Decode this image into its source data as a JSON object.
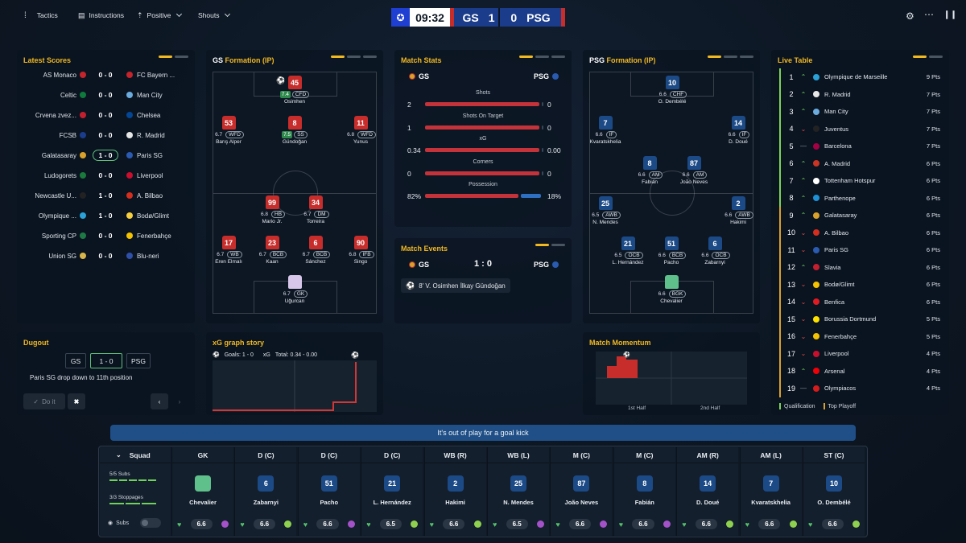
{
  "topbar": {
    "tactics": "Tactics",
    "instructions": "Instructions",
    "mentality": "Positive",
    "shouts": "Shouts"
  },
  "scoreboard": {
    "time": "09:32",
    "home": "GS",
    "home_score": "1",
    "away_score": "0",
    "away": "PSG"
  },
  "latest_scores": {
    "title": "Latest Scores",
    "rows": [
      {
        "home": "AS Monaco",
        "score": "0 - 0",
        "away": "FC Bayern ..."
      },
      {
        "home": "Celtic",
        "score": "0 - 0",
        "away": "Man City"
      },
      {
        "home": "Crvena zvez...",
        "score": "0 - 0",
        "away": "Chelsea"
      },
      {
        "home": "FCSB",
        "score": "0 - 0",
        "away": "R. Madrid"
      },
      {
        "home": "Galatasaray",
        "score": "1 - 0",
        "away": "Paris SG"
      },
      {
        "home": "Ludogorets",
        "score": "0 - 0",
        "away": "Liverpool"
      },
      {
        "home": "Newcastle U...",
        "score": "1 - 0",
        "away": "A. Bilbao"
      },
      {
        "home": "Olympique ...",
        "score": "1 - 0",
        "away": "Bodø/Glimt"
      },
      {
        "home": "Sporting CP",
        "score": "0 - 0",
        "away": "Fenerbahçe"
      },
      {
        "home": "Union SG",
        "score": "0 - 0",
        "away": "Blu-neri"
      }
    ]
  },
  "gs_formation": {
    "title_team": "GS",
    "title_rest": "Formation (IP)",
    "players": [
      {
        "num": "45",
        "rating": "7.4",
        "pos": "CFD",
        "name": "Osimhen",
        "hi": true
      },
      {
        "num": "53",
        "rating": "6.7",
        "pos": "WFD",
        "name": "Barış Alper",
        "hi": false
      },
      {
        "num": "8",
        "rating": "7.5",
        "pos": "SS",
        "name": "Gündoğan",
        "hi": true
      },
      {
        "num": "11",
        "rating": "6.8",
        "pos": "WFD",
        "name": "Yunus",
        "hi": false
      },
      {
        "num": "99",
        "rating": "6.8",
        "pos": "HB",
        "name": "Mario Jr.",
        "hi": false
      },
      {
        "num": "34",
        "rating": "6.7",
        "pos": "DM",
        "name": "Torreira",
        "hi": false
      },
      {
        "num": "17",
        "rating": "6.7",
        "pos": "WB",
        "name": "Eren Elmalı",
        "hi": false
      },
      {
        "num": "23",
        "rating": "6.7",
        "pos": "BCB",
        "name": "Kaan",
        "hi": false
      },
      {
        "num": "6",
        "rating": "6.7",
        "pos": "BCB",
        "name": "Sánchez",
        "hi": false
      },
      {
        "num": "90",
        "rating": "6.8",
        "pos": "IFB",
        "name": "Singo",
        "hi": false
      },
      {
        "num": "",
        "rating": "6.7",
        "pos": "GK",
        "name": "Uğurcan",
        "hi": false
      }
    ]
  },
  "match_stats": {
    "title": "Match Stats",
    "home": "GS",
    "away": "PSG",
    "rows": [
      {
        "label": "Shots",
        "home": "2",
        "away": "0",
        "home_frac": 1.0,
        "away_frac": 0.0
      },
      {
        "label": "Shots On Target",
        "home": "1",
        "away": "0",
        "home_frac": 1.0,
        "away_frac": 0.0
      },
      {
        "label": "xG",
        "home": "0.34",
        "away": "0.00",
        "home_frac": 1.0,
        "away_frac": 0.0
      },
      {
        "label": "Corners",
        "home": "0",
        "away": "0",
        "home_frac": 1.0,
        "away_frac": 0.0
      },
      {
        "label": "Possession",
        "home": "82%",
        "away": "18%",
        "home_frac": 0.82,
        "away_frac": 0.18
      }
    ]
  },
  "match_events": {
    "title": "Match Events",
    "home": "GS",
    "score": "1 : 0",
    "away": "PSG",
    "event": "8' V. Osimhen İlkay Gündoğan"
  },
  "psg_formation": {
    "title_team": "PSG",
    "title_rest": "Formation (IP)",
    "players": [
      {
        "num": "10",
        "rating": "6.6",
        "pos": "CHF",
        "name": "O. Dembélé"
      },
      {
        "num": "7",
        "rating": "6.6",
        "pos": "IF",
        "name": "Kvaratskhelia"
      },
      {
        "num": "14",
        "rating": "6.6",
        "pos": "IF",
        "name": "D. Doué"
      },
      {
        "num": "8",
        "rating": "6.6",
        "pos": "AM",
        "name": "Fabián"
      },
      {
        "num": "87",
        "rating": "6.6",
        "pos": "AM",
        "name": "João Neves"
      },
      {
        "num": "25",
        "rating": "6.5",
        "pos": "AWB",
        "name": "N. Mendes"
      },
      {
        "num": "2",
        "rating": "6.6",
        "pos": "AWB",
        "name": "Hakimi"
      },
      {
        "num": "21",
        "rating": "6.5",
        "pos": "OCB",
        "name": "L. Hernández"
      },
      {
        "num": "51",
        "rating": "6.6",
        "pos": "BCB",
        "name": "Pacho"
      },
      {
        "num": "6",
        "rating": "6.6",
        "pos": "OCB",
        "name": "Zabarnyi"
      },
      {
        "num": "",
        "rating": "6.6",
        "pos": "BGK",
        "name": "Chevalier"
      }
    ]
  },
  "live_table": {
    "title": "Live Table",
    "rows": [
      {
        "pos": "1",
        "move": "up",
        "team": "Olympique de Marseille",
        "pts": "9 Pts"
      },
      {
        "pos": "2",
        "move": "up",
        "team": "R. Madrid",
        "pts": "7 Pts"
      },
      {
        "pos": "3",
        "move": "up",
        "team": "Man City",
        "pts": "7 Pts"
      },
      {
        "pos": "4",
        "move": "down",
        "team": "Juventus",
        "pts": "7 Pts"
      },
      {
        "pos": "5",
        "move": "same",
        "team": "Barcelona",
        "pts": "7 Pts"
      },
      {
        "pos": "6",
        "move": "up",
        "team": "A. Madrid",
        "pts": "6 Pts"
      },
      {
        "pos": "7",
        "move": "up",
        "team": "Tottenham Hotspur",
        "pts": "6 Pts"
      },
      {
        "pos": "8",
        "move": "up",
        "team": "Parthenope",
        "pts": "6 Pts"
      },
      {
        "pos": "9",
        "move": "up",
        "team": "Galatasaray",
        "pts": "6 Pts"
      },
      {
        "pos": "10",
        "move": "down",
        "team": "A. Bilbao",
        "pts": "6 Pts"
      },
      {
        "pos": "11",
        "move": "down",
        "team": "Paris SG",
        "pts": "6 Pts"
      },
      {
        "pos": "12",
        "move": "up",
        "team": "Slavia",
        "pts": "6 Pts"
      },
      {
        "pos": "13",
        "move": "down",
        "team": "Bodø/Glimt",
        "pts": "6 Pts"
      },
      {
        "pos": "14",
        "move": "down",
        "team": "Benfica",
        "pts": "6 Pts"
      },
      {
        "pos": "15",
        "move": "down",
        "team": "Borussia Dortmund",
        "pts": "5 Pts"
      },
      {
        "pos": "16",
        "move": "down",
        "team": "Fenerbahçe",
        "pts": "5 Pts"
      },
      {
        "pos": "17",
        "move": "down",
        "team": "Liverpool",
        "pts": "4 Pts"
      },
      {
        "pos": "18",
        "move": "up",
        "team": "Arsenal",
        "pts": "4 Pts"
      },
      {
        "pos": "19",
        "move": "same",
        "team": "Olympiacos",
        "pts": "4 Pts"
      }
    ],
    "legend_qual": "Qualification",
    "legend_playoff": "Top Playoff"
  },
  "dugout": {
    "title": "Dugout",
    "home": "GS",
    "score": "1 - 0",
    "away": "PSG",
    "message": "Paris SG drop down to 11th position",
    "do_it": "Do it"
  },
  "xg_graph": {
    "title": "xG graph story",
    "goals": "Goals: 1 - 0",
    "xg": "xG",
    "total": "Total: 0.34 - 0.00"
  },
  "momentum": {
    "title": "Match Momentum",
    "first_half": "1st Half",
    "second_half": "2nd Half"
  },
  "commentary": "It's out of play for a goal kick",
  "squad": {
    "title": "Squad",
    "subs": "5/5 Subs",
    "stoppages": "3/3 Stoppages",
    "subs_toggle": "Subs",
    "players": [
      {
        "role": "GK",
        "num": "",
        "name": "Chevalier",
        "rating": "6.6",
        "mood": "purple"
      },
      {
        "role": "D (C)",
        "num": "6",
        "name": "Zabarnyi",
        "rating": "6.6",
        "mood": "green"
      },
      {
        "role": "D (C)",
        "num": "51",
        "name": "Pacho",
        "rating": "6.6",
        "mood": "purple"
      },
      {
        "role": "D (C)",
        "num": "21",
        "name": "L. Hernández",
        "rating": "6.5",
        "mood": "green"
      },
      {
        "role": "WB (R)",
        "num": "2",
        "name": "Hakimi",
        "rating": "6.6",
        "mood": "green"
      },
      {
        "role": "WB (L)",
        "num": "25",
        "name": "N. Mendes",
        "rating": "6.5",
        "mood": "purple"
      },
      {
        "role": "M (C)",
        "num": "87",
        "name": "João Neves",
        "rating": "6.6",
        "mood": "purple"
      },
      {
        "role": "M (C)",
        "num": "8",
        "name": "Fabián",
        "rating": "6.6",
        "mood": "purple"
      },
      {
        "role": "AM (R)",
        "num": "14",
        "name": "D. Doué",
        "rating": "6.6",
        "mood": "green"
      },
      {
        "role": "AM (L)",
        "num": "7",
        "name": "Kvaratskhelia",
        "rating": "6.6",
        "mood": "green"
      },
      {
        "role": "ST (C)",
        "num": "10",
        "name": "O. Dembélé",
        "rating": "6.6",
        "mood": "green"
      }
    ]
  },
  "colors": {
    "accent": "#f1b820",
    "home_red": "#c72d2b",
    "away_blue": "#1c4a86"
  }
}
